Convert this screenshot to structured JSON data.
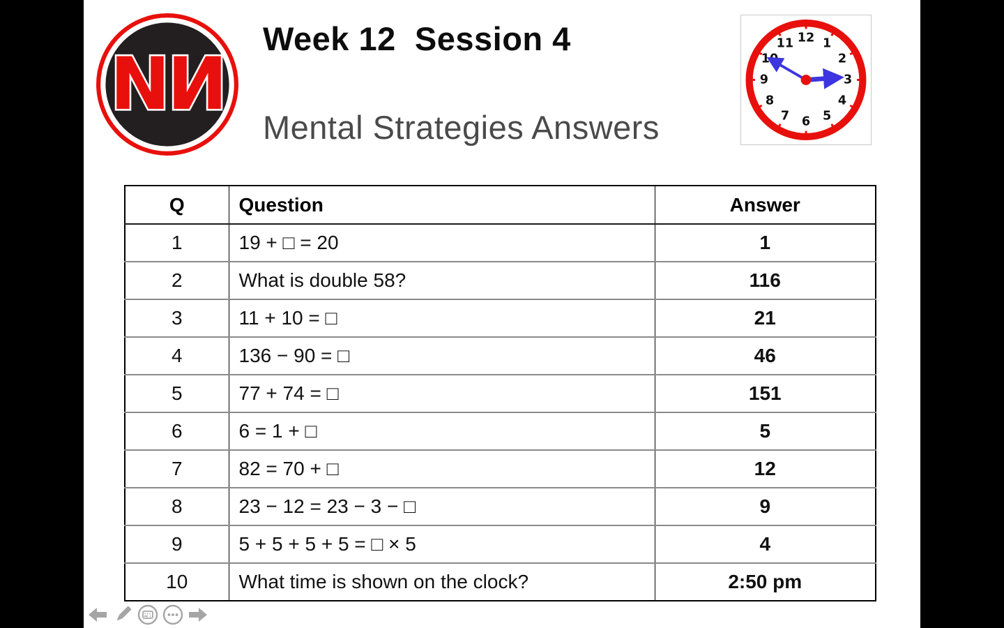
{
  "colors": {
    "accent_red": "#e8100c",
    "answer_blue": "#1b1b75",
    "subtitle_gray": "#4a4a4a",
    "nav_gray": "#a5a5a5",
    "hand_blue": "#3d35e0"
  },
  "logo": {
    "text": "NИ"
  },
  "header": {
    "title": "Week 12  Session 4",
    "subtitle": "Mental Strategies Answers"
  },
  "clock": {
    "numbers": [
      "12",
      "1",
      "2",
      "3",
      "4",
      "5",
      "6",
      "7",
      "8",
      "9",
      "10",
      "11"
    ],
    "hour_angle_deg": 86,
    "minute_angle_deg": 300,
    "time_shown": "2:50"
  },
  "table": {
    "headers": [
      "Q",
      "Question",
      "Answer"
    ],
    "rows": [
      {
        "q": "1",
        "question": "19 + □ = 20",
        "answer": "1"
      },
      {
        "q": "2",
        "question": "What is double 58?",
        "answer": "116"
      },
      {
        "q": "3",
        "question": "11 + 10 = □",
        "answer": "21"
      },
      {
        "q": "4",
        "question": "136 − 90 = □",
        "answer": "46"
      },
      {
        "q": "5",
        "question": "77 + 74 = □",
        "answer": "151"
      },
      {
        "q": "6",
        "question": "6 = 1 + □",
        "answer": "5"
      },
      {
        "q": "7",
        "question": "82 = 70 + □",
        "answer": "12"
      },
      {
        "q": "8",
        "question": "23 − 12 = 23 − 3 − □",
        "answer": "9"
      },
      {
        "q": "9",
        "question": "5 + 5 + 5 + 5 = □ × 5",
        "answer": "4"
      },
      {
        "q": "10",
        "question": "What time is shown on the clock?",
        "answer": "2:50 pm"
      }
    ]
  }
}
